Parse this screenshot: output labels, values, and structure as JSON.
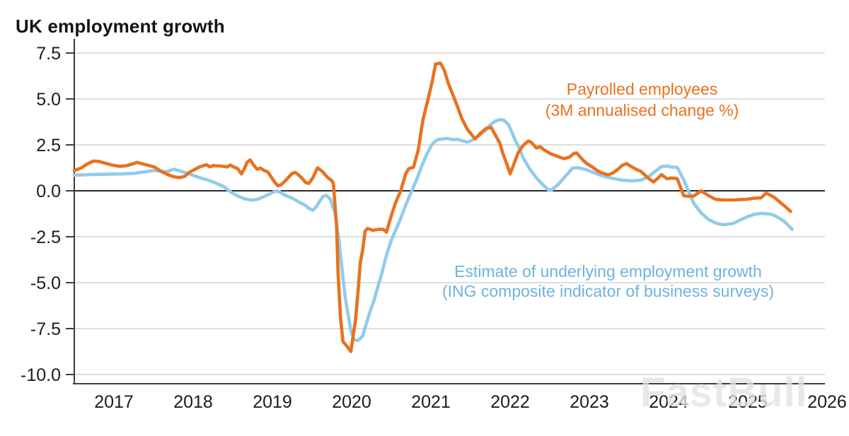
{
  "page": {
    "title": "UK employment growth",
    "watermark": "FastBull"
  },
  "chart_data": {
    "type": "line",
    "title": "UK employment growth",
    "xlabel": "",
    "ylabel": "",
    "grid": "horizontal",
    "legend_position": "annotated-on-plot",
    "xlim": [
      2016.45,
      2026.05
    ],
    "ylim": [
      -10.7,
      7.9
    ],
    "x_tick_values": [
      2017,
      2018,
      2019,
      2020,
      2021,
      2022,
      2023,
      2024,
      2025,
      2026
    ],
    "x_tick_labels": [
      "2017",
      "2018",
      "2019",
      "2020",
      "2021",
      "2022",
      "2023",
      "2024",
      "2025",
      "2026"
    ],
    "y_tick_values": [
      7.5,
      5.0,
      2.5,
      0.0,
      -2.5,
      -5.0,
      -7.5,
      -10.0
    ],
    "y_tick_labels": [
      "7.5",
      "5.0",
      "2.5",
      "0.0",
      "-2.5",
      "-5.0",
      "-7.5",
      "-10.0"
    ],
    "zero_line": true,
    "axis_color": "#3d3d3d",
    "grid_color": "#c9c9c9",
    "zero_line_color": "#2b2b2b",
    "tick_label_color": "#1c1c1c",
    "series": [
      {
        "name": "Estimate of underlying employment growth (ING composite indicator of business surveys)",
        "label_lines": [
          "Estimate of underlying employment growth",
          "(ING composite indicator of business surveys)"
        ],
        "color": "#92CBEB",
        "label_color": "#6FB3DD",
        "points": [
          [
            2016.5,
            0.85
          ],
          [
            2016.7,
            0.88
          ],
          [
            2016.9,
            0.9
          ],
          [
            2017.1,
            0.92
          ],
          [
            2017.25,
            0.95
          ],
          [
            2017.42,
            1.05
          ],
          [
            2017.51,
            1.11
          ],
          [
            2017.6,
            1.05
          ],
          [
            2017.68,
            1.05
          ],
          [
            2017.75,
            1.18
          ],
          [
            2017.82,
            1.1
          ],
          [
            2017.95,
            0.92
          ],
          [
            2018.08,
            0.72
          ],
          [
            2018.21,
            0.55
          ],
          [
            2018.3,
            0.4
          ],
          [
            2018.39,
            0.21
          ],
          [
            2018.47,
            -0.05
          ],
          [
            2018.56,
            -0.28
          ],
          [
            2018.65,
            -0.44
          ],
          [
            2018.74,
            -0.51
          ],
          [
            2018.82,
            -0.45
          ],
          [
            2018.91,
            -0.29
          ],
          [
            2019.0,
            -0.1
          ],
          [
            2019.04,
            -0.02
          ],
          [
            2019.09,
            -0.05
          ],
          [
            2019.16,
            -0.24
          ],
          [
            2019.25,
            -0.4
          ],
          [
            2019.33,
            -0.6
          ],
          [
            2019.42,
            -0.8
          ],
          [
            2019.46,
            -0.95
          ],
          [
            2019.51,
            -1.06
          ],
          [
            2019.55,
            -0.9
          ],
          [
            2019.6,
            -0.55
          ],
          [
            2019.64,
            -0.3
          ],
          [
            2019.68,
            -0.25
          ],
          [
            2019.73,
            -0.45
          ],
          [
            2019.79,
            -1.2
          ],
          [
            2019.83,
            -2.4
          ],
          [
            2019.86,
            -3.5
          ],
          [
            2019.89,
            -4.7
          ],
          [
            2019.92,
            -5.8
          ],
          [
            2019.95,
            -6.6
          ],
          [
            2019.99,
            -7.6
          ],
          [
            2020.03,
            -8.1
          ],
          [
            2020.08,
            -8.15
          ],
          [
            2020.14,
            -7.9
          ],
          [
            2020.18,
            -7.3
          ],
          [
            2020.23,
            -6.6
          ],
          [
            2020.28,
            -6.0
          ],
          [
            2020.32,
            -5.4
          ],
          [
            2020.38,
            -4.5
          ],
          [
            2020.44,
            -3.5
          ],
          [
            2020.5,
            -2.7
          ],
          [
            2020.55,
            -2.2
          ],
          [
            2020.62,
            -1.5
          ],
          [
            2020.68,
            -0.8
          ],
          [
            2020.75,
            -0.1
          ],
          [
            2020.82,
            0.6
          ],
          [
            2020.88,
            1.3
          ],
          [
            2020.95,
            2.0
          ],
          [
            2021.01,
            2.5
          ],
          [
            2021.08,
            2.78
          ],
          [
            2021.15,
            2.82
          ],
          [
            2021.21,
            2.85
          ],
          [
            2021.28,
            2.78
          ],
          [
            2021.34,
            2.8
          ],
          [
            2021.41,
            2.7
          ],
          [
            2021.47,
            2.65
          ],
          [
            2021.54,
            2.8
          ],
          [
            2021.61,
            3.0
          ],
          [
            2021.68,
            3.25
          ],
          [
            2021.74,
            3.55
          ],
          [
            2021.81,
            3.78
          ],
          [
            2021.87,
            3.88
          ],
          [
            2021.92,
            3.85
          ],
          [
            2021.98,
            3.6
          ],
          [
            2022.03,
            3.1
          ],
          [
            2022.07,
            2.7
          ],
          [
            2022.12,
            2.3
          ],
          [
            2022.16,
            1.83
          ],
          [
            2022.25,
            1.17
          ],
          [
            2022.33,
            0.71
          ],
          [
            2022.42,
            0.3
          ],
          [
            2022.49,
            0.02
          ],
          [
            2022.53,
            0.06
          ],
          [
            2022.62,
            0.4
          ],
          [
            2022.68,
            0.71
          ],
          [
            2022.75,
            1.04
          ],
          [
            2022.79,
            1.25
          ],
          [
            2022.86,
            1.25
          ],
          [
            2022.95,
            1.17
          ],
          [
            2023.06,
            0.98
          ],
          [
            2023.18,
            0.79
          ],
          [
            2023.3,
            0.67
          ],
          [
            2023.41,
            0.58
          ],
          [
            2023.54,
            0.54
          ],
          [
            2023.65,
            0.58
          ],
          [
            2023.74,
            0.75
          ],
          [
            2023.83,
            1.05
          ],
          [
            2023.91,
            1.32
          ],
          [
            2023.98,
            1.35
          ],
          [
            2024.03,
            1.3
          ],
          [
            2024.11,
            1.27
          ],
          [
            2024.19,
            0.6
          ],
          [
            2024.26,
            -0.1
          ],
          [
            2024.32,
            -0.7
          ],
          [
            2024.41,
            -1.2
          ],
          [
            2024.5,
            -1.55
          ],
          [
            2024.59,
            -1.75
          ],
          [
            2024.68,
            -1.85
          ],
          [
            2024.75,
            -1.82
          ],
          [
            2024.82,
            -1.77
          ],
          [
            2024.9,
            -1.6
          ],
          [
            2024.99,
            -1.42
          ],
          [
            2025.08,
            -1.28
          ],
          [
            2025.17,
            -1.23
          ],
          [
            2025.23,
            -1.25
          ],
          [
            2025.29,
            -1.27
          ],
          [
            2025.34,
            -1.35
          ],
          [
            2025.4,
            -1.5
          ],
          [
            2025.47,
            -1.7
          ],
          [
            2025.56,
            -2.1
          ]
        ]
      },
      {
        "name": "Payrolled employees (3M annualised change %)",
        "label_lines": [
          "Payrolled employees",
          "(3M annualised change %)"
        ],
        "color": "#E8721F",
        "label_color": "#E8721F",
        "points": [
          [
            2016.5,
            1.1
          ],
          [
            2016.59,
            1.25
          ],
          [
            2016.66,
            1.45
          ],
          [
            2016.74,
            1.62
          ],
          [
            2016.81,
            1.6
          ],
          [
            2016.89,
            1.5
          ],
          [
            2016.98,
            1.4
          ],
          [
            2017.07,
            1.33
          ],
          [
            2017.16,
            1.37
          ],
          [
            2017.25,
            1.48
          ],
          [
            2017.29,
            1.55
          ],
          [
            2017.33,
            1.5
          ],
          [
            2017.42,
            1.4
          ],
          [
            2017.51,
            1.3
          ],
          [
            2017.6,
            1.05
          ],
          [
            2017.68,
            0.88
          ],
          [
            2017.73,
            0.8
          ],
          [
            2017.77,
            0.75
          ],
          [
            2017.83,
            0.72
          ],
          [
            2017.89,
            0.78
          ],
          [
            2017.95,
            1.0
          ],
          [
            2018.08,
            1.3
          ],
          [
            2018.17,
            1.42
          ],
          [
            2018.21,
            1.3
          ],
          [
            2018.25,
            1.37
          ],
          [
            2018.34,
            1.35
          ],
          [
            2018.43,
            1.3
          ],
          [
            2018.47,
            1.4
          ],
          [
            2018.52,
            1.28
          ],
          [
            2018.56,
            1.22
          ],
          [
            2018.61,
            0.92
          ],
          [
            2018.65,
            1.24
          ],
          [
            2018.68,
            1.55
          ],
          [
            2018.72,
            1.68
          ],
          [
            2018.76,
            1.42
          ],
          [
            2018.81,
            1.17
          ],
          [
            2018.85,
            1.24
          ],
          [
            2018.89,
            1.12
          ],
          [
            2018.94,
            1.03
          ],
          [
            2018.98,
            0.78
          ],
          [
            2019.03,
            0.46
          ],
          [
            2019.07,
            0.27
          ],
          [
            2019.11,
            0.33
          ],
          [
            2019.16,
            0.53
          ],
          [
            2019.2,
            0.72
          ],
          [
            2019.25,
            0.95
          ],
          [
            2019.29,
            1.0
          ],
          [
            2019.33,
            0.86
          ],
          [
            2019.38,
            0.66
          ],
          [
            2019.42,
            0.45
          ],
          [
            2019.46,
            0.4
          ],
          [
            2019.51,
            0.7
          ],
          [
            2019.57,
            1.25
          ],
          [
            2019.63,
            1.05
          ],
          [
            2019.7,
            0.71
          ],
          [
            2019.75,
            0.55
          ],
          [
            2019.77,
            0.4
          ],
          [
            2019.81,
            -1.9
          ],
          [
            2019.83,
            -4.6
          ],
          [
            2019.86,
            -6.9
          ],
          [
            2019.89,
            -8.2
          ],
          [
            2019.94,
            -8.45
          ],
          [
            2019.99,
            -8.75
          ],
          [
            2020.05,
            -7.0
          ],
          [
            2020.08,
            -5.5
          ],
          [
            2020.11,
            -3.9
          ],
          [
            2020.14,
            -3.2
          ],
          [
            2020.17,
            -2.2
          ],
          [
            2020.2,
            -2.05
          ],
          [
            2020.27,
            -2.15
          ],
          [
            2020.33,
            -2.1
          ],
          [
            2020.4,
            -2.1
          ],
          [
            2020.44,
            -2.25
          ],
          [
            2020.49,
            -1.5
          ],
          [
            2020.55,
            -0.7
          ],
          [
            2020.62,
            0.0
          ],
          [
            2020.68,
            0.9
          ],
          [
            2020.72,
            1.2
          ],
          [
            2020.78,
            1.28
          ],
          [
            2020.84,
            2.21
          ],
          [
            2020.9,
            3.87
          ],
          [
            2020.96,
            4.9
          ],
          [
            2021.02,
            6.0
          ],
          [
            2021.06,
            6.9
          ],
          [
            2021.12,
            6.95
          ],
          [
            2021.17,
            6.57
          ],
          [
            2021.22,
            5.85
          ],
          [
            2021.28,
            5.2
          ],
          [
            2021.34,
            4.53
          ],
          [
            2021.39,
            3.94
          ],
          [
            2021.46,
            3.35
          ],
          [
            2021.52,
            3.03
          ],
          [
            2021.56,
            2.83
          ],
          [
            2021.63,
            3.15
          ],
          [
            2021.7,
            3.4
          ],
          [
            2021.76,
            3.45
          ],
          [
            2021.81,
            3.07
          ],
          [
            2021.87,
            2.6
          ],
          [
            2021.91,
            2.02
          ],
          [
            2021.96,
            1.44
          ],
          [
            2022.0,
            0.92
          ],
          [
            2022.04,
            1.37
          ],
          [
            2022.1,
            2.06
          ],
          [
            2022.16,
            2.45
          ],
          [
            2022.23,
            2.71
          ],
          [
            2022.27,
            2.63
          ],
          [
            2022.33,
            2.33
          ],
          [
            2022.38,
            2.4
          ],
          [
            2022.42,
            2.25
          ],
          [
            2022.51,
            2.02
          ],
          [
            2022.6,
            1.87
          ],
          [
            2022.68,
            1.75
          ],
          [
            2022.75,
            1.83
          ],
          [
            2022.8,
            2.02
          ],
          [
            2022.84,
            2.06
          ],
          [
            2022.92,
            1.67
          ],
          [
            2022.97,
            1.48
          ],
          [
            2023.04,
            1.29
          ],
          [
            2023.1,
            1.1
          ],
          [
            2023.15,
            0.98
          ],
          [
            2023.24,
            0.87
          ],
          [
            2023.3,
            0.98
          ],
          [
            2023.36,
            1.17
          ],
          [
            2023.41,
            1.37
          ],
          [
            2023.47,
            1.48
          ],
          [
            2023.54,
            1.29
          ],
          [
            2023.59,
            1.17
          ],
          [
            2023.65,
            1.06
          ],
          [
            2023.74,
            0.7
          ],
          [
            2023.81,
            0.48
          ],
          [
            2023.87,
            0.7
          ],
          [
            2023.91,
            0.88
          ],
          [
            2023.98,
            0.65
          ],
          [
            2024.04,
            0.7
          ],
          [
            2024.11,
            0.66
          ],
          [
            2024.19,
            -0.27
          ],
          [
            2024.26,
            -0.3
          ],
          [
            2024.32,
            -0.28
          ],
          [
            2024.41,
            0.0
          ],
          [
            2024.5,
            -0.25
          ],
          [
            2024.59,
            -0.46
          ],
          [
            2024.68,
            -0.5
          ],
          [
            2024.75,
            -0.5
          ],
          [
            2024.82,
            -0.5
          ],
          [
            2024.9,
            -0.48
          ],
          [
            2024.99,
            -0.46
          ],
          [
            2025.08,
            -0.4
          ],
          [
            2025.17,
            -0.38
          ],
          [
            2025.23,
            -0.12
          ],
          [
            2025.29,
            -0.25
          ],
          [
            2025.34,
            -0.38
          ],
          [
            2025.4,
            -0.6
          ],
          [
            2025.47,
            -0.85
          ],
          [
            2025.54,
            -1.12
          ]
        ]
      }
    ]
  }
}
